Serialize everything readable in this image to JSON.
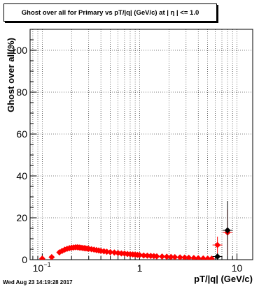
{
  "chart_data": {
    "type": "scatter",
    "title": "Ghost over all for Primary vs pT/|q| (GeV/c) at |  η | <= 1.0",
    "xlabel": "pT/|q| (GeV/c)",
    "ylabel": "Ghost over all(%)",
    "x_scale": "log",
    "xlim": [
      0.075,
      14.5
    ],
    "ylim": [
      0,
      110
    ],
    "x_tick_labels": [
      {
        "value": 0.1,
        "label": "10",
        "exponent": "−1"
      },
      {
        "value": 1,
        "label": "1"
      },
      {
        "value": 10,
        "label": "10"
      }
    ],
    "y_ticks": [
      0,
      20,
      40,
      60,
      80,
      100
    ],
    "grid": true,
    "series": [
      {
        "color": "#ff0000",
        "marker": "diamond",
        "points": [
          {
            "x": 0.1,
            "y": 0.5
          },
          {
            "x": 0.125,
            "y": 1.2
          },
          {
            "x": 0.15,
            "y": 3.5
          },
          {
            "x": 0.16,
            "y": 4.2
          },
          {
            "x": 0.17,
            "y": 4.8
          },
          {
            "x": 0.18,
            "y": 5.2
          },
          {
            "x": 0.19,
            "y": 5.5
          },
          {
            "x": 0.2,
            "y": 5.7
          },
          {
            "x": 0.21,
            "y": 5.8
          },
          {
            "x": 0.22,
            "y": 5.9
          },
          {
            "x": 0.23,
            "y": 5.9
          },
          {
            "x": 0.24,
            "y": 5.8
          },
          {
            "x": 0.25,
            "y": 5.7
          },
          {
            "x": 0.26,
            "y": 5.6
          },
          {
            "x": 0.27,
            "y": 5.5
          },
          {
            "x": 0.28,
            "y": 5.4
          },
          {
            "x": 0.29,
            "y": 5.3
          },
          {
            "x": 0.3,
            "y": 5.2
          },
          {
            "x": 0.32,
            "y": 5.0
          },
          {
            "x": 0.34,
            "y": 4.8
          },
          {
            "x": 0.36,
            "y": 4.6
          },
          {
            "x": 0.38,
            "y": 4.4
          },
          {
            "x": 0.4,
            "y": 4.2
          },
          {
            "x": 0.43,
            "y": 4.0
          },
          {
            "x": 0.46,
            "y": 3.8
          },
          {
            "x": 0.5,
            "y": 3.6
          },
          {
            "x": 0.55,
            "y": 3.4
          },
          {
            "x": 0.6,
            "y": 3.2
          },
          {
            "x": 0.65,
            "y": 3.0
          },
          {
            "x": 0.7,
            "y": 2.9
          },
          {
            "x": 0.75,
            "y": 2.7
          },
          {
            "x": 0.8,
            "y": 2.6
          },
          {
            "x": 0.85,
            "y": 2.5
          },
          {
            "x": 0.9,
            "y": 2.4
          },
          {
            "x": 0.95,
            "y": 2.3
          },
          {
            "x": 1.0,
            "y": 2.2
          },
          {
            "x": 1.1,
            "y": 2.0
          },
          {
            "x": 1.2,
            "y": 1.9
          },
          {
            "x": 1.3,
            "y": 1.8
          },
          {
            "x": 1.4,
            "y": 1.7
          },
          {
            "x": 1.5,
            "y": 1.6
          },
          {
            "x": 1.7,
            "y": 1.5
          },
          {
            "x": 1.9,
            "y": 1.4
          },
          {
            "x": 2.1,
            "y": 1.3
          },
          {
            "x": 2.3,
            "y": 1.2
          },
          {
            "x": 2.6,
            "y": 1.1
          },
          {
            "x": 2.9,
            "y": 1.0
          },
          {
            "x": 3.2,
            "y": 0.9
          },
          {
            "x": 3.6,
            "y": 0.8
          },
          {
            "x": 4.0,
            "y": 0.7
          },
          {
            "x": 4.5,
            "y": 0.6
          },
          {
            "x": 5.0,
            "y": 0.5
          },
          {
            "x": 5.5,
            "y": 0.5
          },
          {
            "x": 6.3,
            "y": 7.0,
            "err": 4.0
          },
          {
            "x": 8.0,
            "y": 13.0,
            "err": 11.0
          }
        ]
      },
      {
        "color": "#000000",
        "marker": "diamond",
        "points": [
          {
            "x": 6.3,
            "y": 1.5,
            "err": 1.5
          },
          {
            "x": 8.0,
            "y": 14.0,
            "err": 14.0
          }
        ]
      }
    ]
  },
  "footer": {
    "timestamp": "Wed Aug 23 14:19:28 2017"
  }
}
